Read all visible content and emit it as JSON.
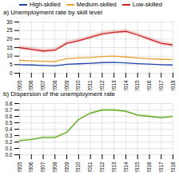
{
  "chart_data": [
    {
      "type": "line",
      "title": "a) Unemployment rate by skill level",
      "x": [
        2005,
        2006,
        2007,
        2008,
        2009,
        2010,
        2011,
        2012,
        2013,
        2014,
        2015,
        2016,
        2017,
        2018
      ],
      "xlim": [
        2005,
        2018
      ],
      "xticks": [
        2005,
        2006,
        2007,
        2008,
        2009,
        2010,
        2011,
        2012,
        2013,
        2014,
        2015,
        2016,
        2017,
        2018
      ],
      "ylim": [
        0,
        30
      ],
      "yticks": [
        0,
        5,
        10,
        15,
        20,
        25,
        30
      ],
      "grid": true,
      "legend": "upper left",
      "series": [
        {
          "name": "High-skilled",
          "color": "#2244aa",
          "values": [
            5.0,
            4.8,
            4.5,
            4.3,
            5.2,
            5.5,
            5.8,
            6.2,
            6.4,
            6.0,
            5.6,
            5.3,
            5.0,
            4.8
          ]
        },
        {
          "name": "Medium-skilled",
          "color": "#e8a030",
          "values": [
            7.5,
            7.2,
            7.0,
            6.8,
            8.5,
            9.0,
            9.2,
            9.8,
            10.0,
            9.5,
            9.0,
            8.5,
            8.2,
            8.0
          ]
        },
        {
          "name": "Low-skilled",
          "color": "#cc2222",
          "values": [
            15.0,
            14.0,
            13.0,
            13.5,
            17.5,
            19.0,
            21.0,
            23.0,
            24.0,
            24.5,
            22.5,
            20.0,
            17.5,
            16.5
          ],
          "lower": [
            13.8,
            12.8,
            11.8,
            12.3,
            16.3,
            17.8,
            19.8,
            21.8,
            22.8,
            23.3,
            21.3,
            18.8,
            16.3,
            15.3
          ],
          "upper": [
            16.2,
            15.2,
            14.2,
            14.7,
            18.7,
            20.2,
            22.2,
            24.2,
            25.2,
            25.7,
            23.7,
            21.2,
            18.7,
            17.7
          ]
        }
      ]
    },
    {
      "type": "line",
      "title": "b) Dispersion of the unemployment rate",
      "x": [
        2005,
        2006,
        2007,
        2008,
        2009,
        2010,
        2011,
        2012,
        2013,
        2014,
        2015,
        2016,
        2017,
        2018
      ],
      "xlim": [
        2005,
        2018
      ],
      "xticks": [
        2005,
        2006,
        2007,
        2008,
        2009,
        2010,
        2011,
        2012,
        2013,
        2014,
        2015,
        2016,
        2017,
        2018
      ],
      "ylim": [
        0.0,
        0.8
      ],
      "yticks": [
        {
          "value": 0,
          "label": "0.0"
        },
        0.1,
        0.2,
        0.3,
        0.4,
        0.5,
        0.6,
        0.7,
        0.8
      ],
      "grid": true,
      "color": "#66aa22",
      "values": [
        0.22,
        0.24,
        0.27,
        0.27,
        0.35,
        0.55,
        0.65,
        0.7,
        0.7,
        0.68,
        0.62,
        0.6,
        0.58,
        0.6
      ],
      "lower": [
        0.2,
        0.22,
        0.25,
        0.25,
        0.33,
        0.53,
        0.63,
        0.68,
        0.68,
        0.66,
        0.6,
        0.58,
        0.56,
        0.58
      ],
      "upper": [
        0.24,
        0.26,
        0.29,
        0.29,
        0.37,
        0.57,
        0.67,
        0.72,
        0.72,
        0.7,
        0.64,
        0.62,
        0.6,
        0.62
      ]
    }
  ]
}
